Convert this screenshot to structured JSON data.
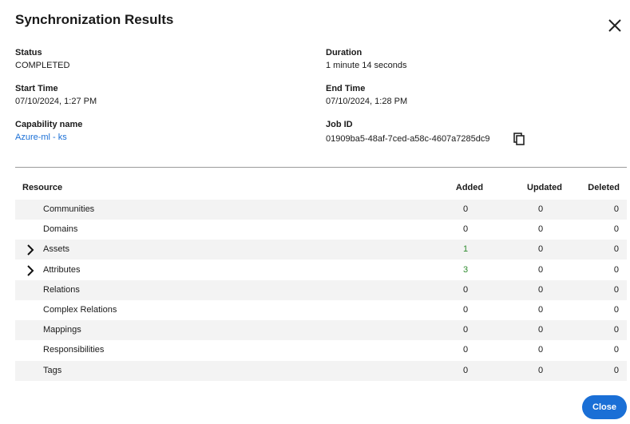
{
  "dialog": {
    "title": "Synchronization Results",
    "fields": [
      {
        "label": "Status",
        "value": "COMPLETED"
      },
      {
        "label": "Duration",
        "value": "1 minute 14 seconds"
      },
      {
        "label": "Start Time",
        "value": "07/10/2024, 1:27 PM"
      },
      {
        "label": "End Time",
        "value": "07/10/2024, 1:28 PM"
      },
      {
        "label": "Capability name",
        "value": "Azure-ml - ks",
        "link": true
      },
      {
        "label": "Job ID",
        "value": "01909ba5-48af-7ced-a58c-4607a7285dc9",
        "copy": true
      }
    ],
    "table": {
      "columns": [
        "Resource",
        "Added",
        "Updated",
        "Deleted"
      ],
      "rows": [
        {
          "name": "Communities",
          "added": 0,
          "updated": 0,
          "deleted": 0
        },
        {
          "name": "Domains",
          "added": 0,
          "updated": 0,
          "deleted": 0
        },
        {
          "name": "Assets",
          "added": 1,
          "updated": 0,
          "deleted": 0,
          "expandable": true
        },
        {
          "name": "Attributes",
          "added": 3,
          "updated": 0,
          "deleted": 0,
          "expandable": true
        },
        {
          "name": "Relations",
          "added": 0,
          "updated": 0,
          "deleted": 0
        },
        {
          "name": "Complex Relations",
          "added": 0,
          "updated": 0,
          "deleted": 0
        },
        {
          "name": "Mappings",
          "added": 0,
          "updated": 0,
          "deleted": 0
        },
        {
          "name": "Responsibilities",
          "added": 0,
          "updated": 0,
          "deleted": 0
        },
        {
          "name": "Tags",
          "added": 0,
          "updated": 0,
          "deleted": 0
        }
      ]
    },
    "button": "Close"
  }
}
